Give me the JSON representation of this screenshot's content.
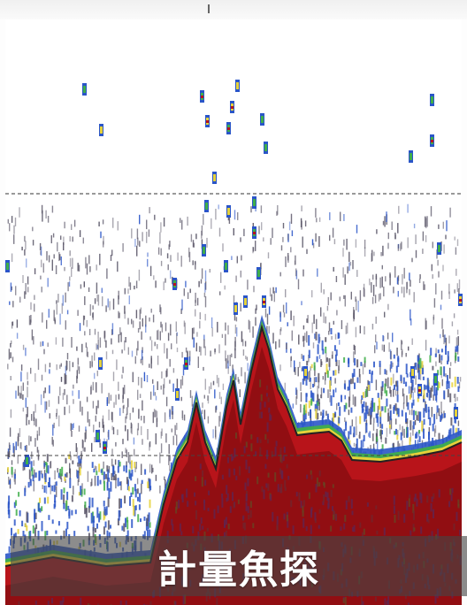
{
  "caption": {
    "text": "計量魚探"
  },
  "palette": {
    "background": "#ffffff",
    "noise": "#5a5668",
    "weak": "#2a55c8",
    "medium_green": "#3fae4a",
    "medium_yellow": "#e6d23a",
    "strong": "#b8141a",
    "strongest": "#7c0a0e",
    "depth_line": "#222222"
  },
  "icons": [
    "depth-marker-icon"
  ]
}
